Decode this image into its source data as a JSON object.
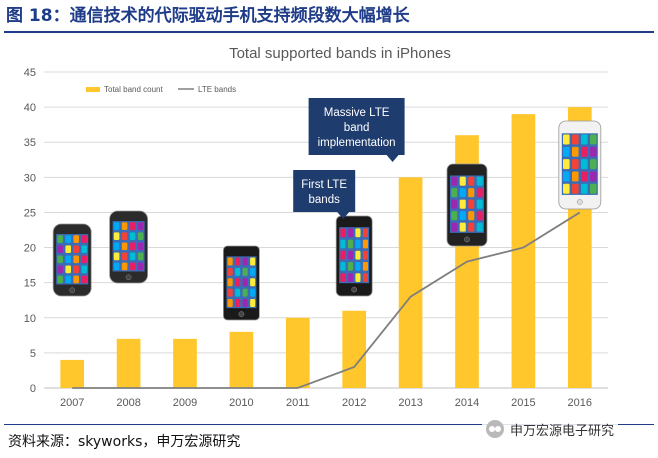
{
  "figure": {
    "title": "图 18：通信技术的代际驱动手机支持频段数大幅增长",
    "source": "资料来源：skyworks，申万宏源研究",
    "watermark": "申万宏源电子研究",
    "watermark_icon": "wechat-icon"
  },
  "chart_data": {
    "type": "bar",
    "title": "Total supported bands in iPhones",
    "categories": [
      "2007",
      "2008",
      "2009",
      "2010",
      "2011",
      "2012",
      "2013",
      "2014",
      "2015",
      "2016"
    ],
    "series": [
      {
        "name": "Total band count",
        "type": "bar",
        "color": "#ffc72c",
        "values": [
          4,
          7,
          7,
          8,
          10,
          11,
          30,
          36,
          39,
          40
        ]
      },
      {
        "name": "LTE bands",
        "type": "line",
        "color": "#7f7f7f",
        "values": [
          0,
          0,
          0,
          0,
          0,
          3,
          13,
          18,
          20,
          25
        ]
      }
    ],
    "ylim": [
      0,
      45
    ],
    "yticks": [
      0,
      5,
      10,
      15,
      20,
      25,
      30,
      35,
      40,
      45
    ],
    "legend_position": "top-left",
    "xlabel": "",
    "ylabel": "",
    "annotations": [
      {
        "id": "first-lte",
        "lines": [
          "First LTE",
          "bands"
        ],
        "category": "2012"
      },
      {
        "id": "massive-lte",
        "lines": [
          "Massive LTE",
          "band",
          "implementation"
        ],
        "category": "2013"
      }
    ],
    "phones": [
      {
        "category": "2007",
        "model": "classic"
      },
      {
        "category": "2008",
        "model": "classic"
      },
      {
        "category": "2010",
        "model": "flat"
      },
      {
        "category": "2012",
        "model": "tall"
      },
      {
        "category": "2014",
        "model": "round"
      },
      {
        "category": "2016",
        "model": "white"
      }
    ]
  }
}
